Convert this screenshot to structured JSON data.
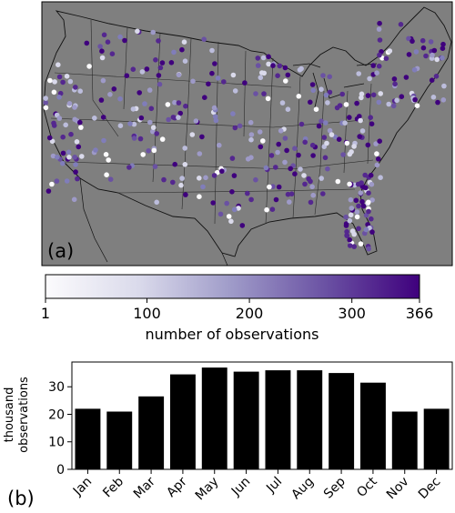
{
  "panel_a": {
    "label": "(a)",
    "map_background": "#7f7f7f",
    "colorbar": {
      "ticks": [
        "1",
        "100",
        "200",
        "300",
        "366"
      ],
      "tick_values": [
        1,
        100,
        200,
        300,
        366
      ],
      "range": [
        1,
        366
      ],
      "label": "number of observations",
      "colormap": "Purples",
      "color_low": "#fcfbfd",
      "color_high": "#3f007d"
    }
  },
  "panel_b": {
    "label": "(b)"
  },
  "chart_data": [
    {
      "type": "heatmap",
      "description_of_marks": "station observation counts over a US map",
      "colorbar_label": "number of observations",
      "vmin": 1,
      "vmax": 366
    },
    {
      "type": "bar",
      "categories": [
        "Jan",
        "Feb",
        "Mar",
        "Apr",
        "May",
        "Jun",
        "Jul",
        "Aug",
        "Sep",
        "Oct",
        "Nov",
        "Dec"
      ],
      "values": [
        22,
        21,
        26.5,
        34.5,
        37,
        35.5,
        36,
        36,
        35,
        31.5,
        21,
        22
      ],
      "ylabel_lines": [
        "thousand",
        "observations"
      ],
      "yticks": [
        0,
        10,
        20,
        30
      ],
      "ylim": [
        0,
        39
      ],
      "bar_color": "#000000",
      "grid": false
    }
  ]
}
